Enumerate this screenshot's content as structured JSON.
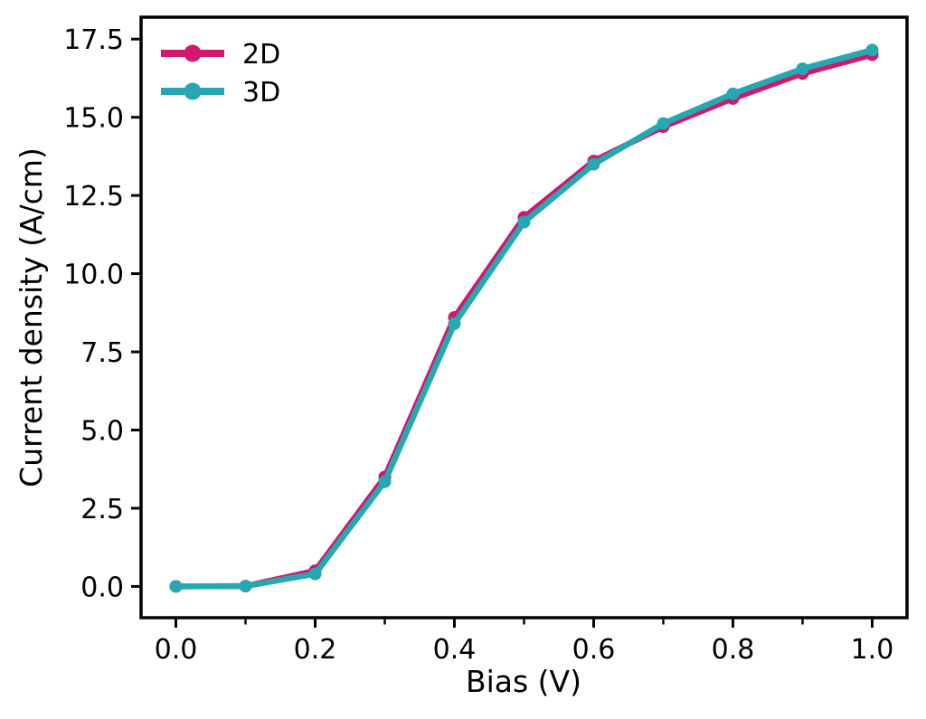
{
  "figure": {
    "background": "#ffffff",
    "axis_color": "#000000",
    "text_color": "#000000"
  },
  "chart_data": {
    "type": "line",
    "title": "",
    "xlabel": "Bias (V)",
    "ylabel": "Current density (A/cm)",
    "x": [
      0.0,
      0.1,
      0.2,
      0.3,
      0.4,
      0.5,
      0.6,
      0.7,
      0.8,
      0.9,
      1.0
    ],
    "series": [
      {
        "name": "2D",
        "color": "#d3176a",
        "values": [
          0.0,
          0.01,
          0.5,
          3.5,
          8.6,
          11.8,
          13.6,
          14.7,
          15.6,
          16.4,
          17.0
        ]
      },
      {
        "name": "3D",
        "color": "#26a8b2",
        "values": [
          0.0,
          0.01,
          0.4,
          3.35,
          8.4,
          11.65,
          13.5,
          14.8,
          15.75,
          16.55,
          17.15
        ]
      }
    ],
    "xlim": [
      -0.05,
      1.05
    ],
    "ylim": [
      -1.0,
      18.2
    ],
    "x_ticks": {
      "major": [
        0.0,
        0.2,
        0.4,
        0.6,
        0.8,
        1.0
      ],
      "major_labels": [
        "0.0",
        "0.2",
        "0.4",
        "0.6",
        "0.8",
        "1.0"
      ],
      "minor": [
        0.1,
        0.3,
        0.5,
        0.7,
        0.9
      ]
    },
    "y_ticks": {
      "major": [
        0.0,
        2.5,
        5.0,
        7.5,
        10.0,
        12.5,
        15.0,
        17.5
      ],
      "major_labels": [
        "0.0",
        "2.5",
        "5.0",
        "7.5",
        "10.0",
        "12.5",
        "15.0",
        "17.5"
      ]
    },
    "grid": false,
    "legend": {
      "position": "upper-left",
      "frame": false
    }
  }
}
